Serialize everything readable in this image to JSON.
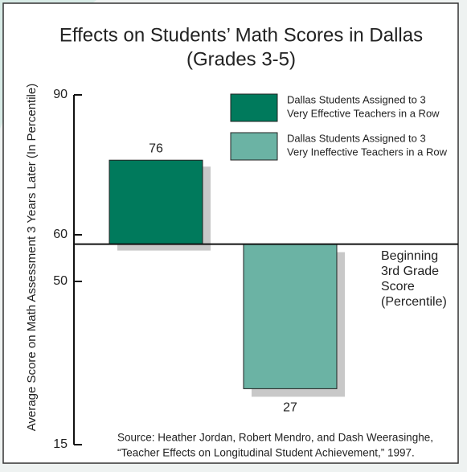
{
  "chart_data": {
    "type": "bar",
    "title": "Effects on Students’ Math Scores in Dallas",
    "subtitle": "(Grades 3-5)",
    "y_label": "Average Score on Math Assessment 3 Years Later (In Percentile)",
    "categories": [
      null,
      null
    ],
    "series": [
      {
        "name": "Dallas Students Assigned to 3 Very Effective Teachers in a Row",
        "name_lines": [
          "Dallas Students Assigned to 3",
          "Very Effective Teachers in a Row"
        ],
        "color": "#007a5c",
        "values": [
          76,
          null
        ]
      },
      {
        "name": "Dallas Students Assigned to 3 Very Ineffective Teachers in a Row",
        "name_lines": [
          "Dallas Students Assigned to 3",
          "Very Ineffective Teachers in a Row"
        ],
        "color": "#6bb3a4",
        "values": [
          null,
          27
        ]
      }
    ],
    "baseline": 58,
    "baseline_label": [
      "Beginning",
      "3rd Grade",
      "Score",
      "(Percentile)"
    ],
    "ylim": [
      15,
      90
    ],
    "yticks": [
      90,
      60,
      50,
      15
    ],
    "source": [
      "Source: Heather Jordan, Robert Mendro, and Dash Weerasinghe,",
      "“Teacher Effects on Longitudinal Student Achievement,” 1997."
    ]
  }
}
